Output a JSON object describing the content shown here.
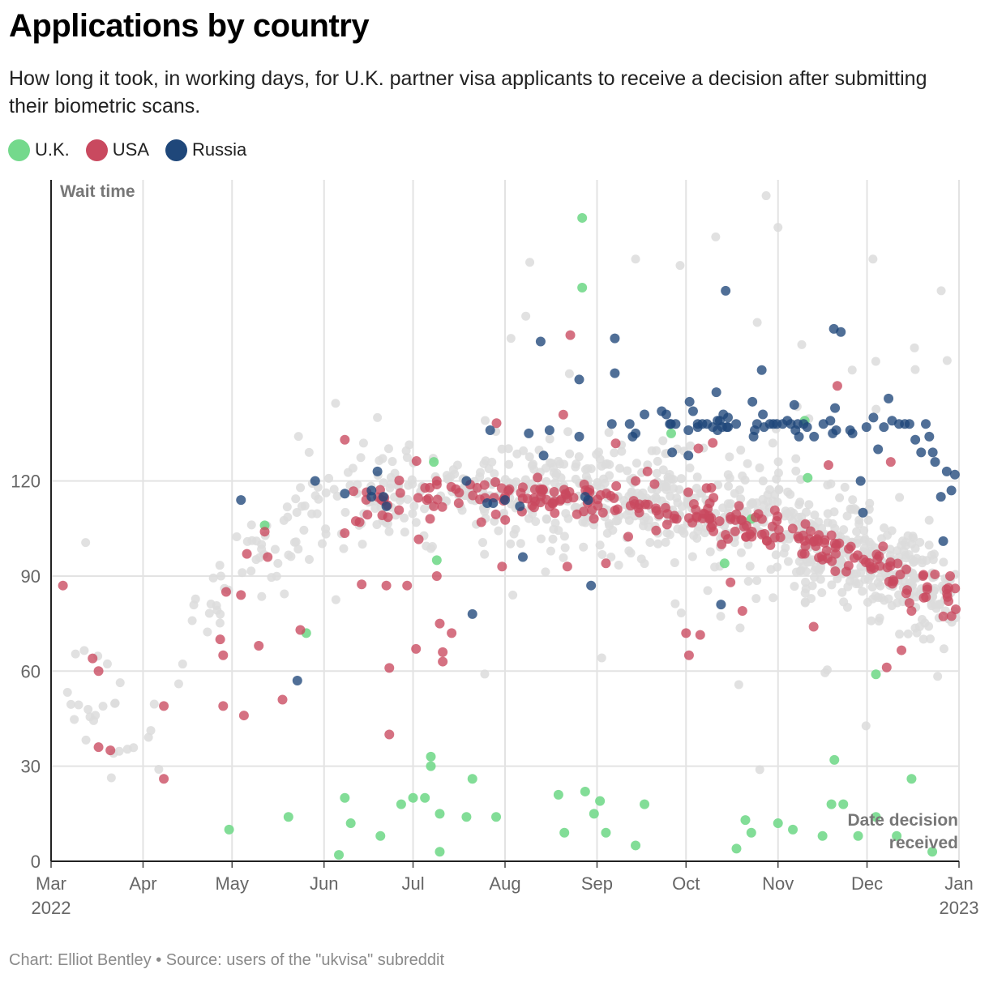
{
  "chart_data": {
    "type": "scatter",
    "title": "Applications by country",
    "subtitle": "How long it took, in working days, for U.K. partner visa applicants to receive a decision after submitting their biometric scans.",
    "ylabel": "Wait time",
    "xlabel": "Date decision received",
    "xlabel_lines": [
      "Date decision",
      "received"
    ],
    "ylim": [
      0,
      215
    ],
    "xlim": [
      "2022-03-01",
      "2023-01-01"
    ],
    "y_ticks": [
      0,
      30,
      60,
      90,
      120
    ],
    "x_ticks": [
      {
        "month": "Mar",
        "year": "2022",
        "date": "2022-03-01"
      },
      {
        "month": "Apr",
        "year": "",
        "date": "2022-04-01"
      },
      {
        "month": "May",
        "year": "",
        "date": "2022-05-01"
      },
      {
        "month": "Jun",
        "year": "",
        "date": "2022-06-01"
      },
      {
        "month": "Jul",
        "year": "",
        "date": "2022-07-01"
      },
      {
        "month": "Aug",
        "year": "",
        "date": "2022-08-01"
      },
      {
        "month": "Sep",
        "year": "",
        "date": "2022-09-01"
      },
      {
        "month": "Oct",
        "year": "",
        "date": "2022-10-01"
      },
      {
        "month": "Nov",
        "year": "",
        "date": "2022-11-01"
      },
      {
        "month": "Dec",
        "year": "",
        "date": "2022-12-01"
      },
      {
        "month": "Jan",
        "year": "2023",
        "date": "2023-01-01"
      }
    ],
    "legend": [
      {
        "name": "U.K.",
        "color": "#74d98c"
      },
      {
        "name": "USA",
        "color": "#c9495f"
      },
      {
        "name": "Russia",
        "color": "#1f477a"
      }
    ],
    "other_color": "#dcdcdc",
    "other_points_note": "Other countries shown in light grey, generated as a dense cloud following the trend line below",
    "other_trend": [
      [
        0,
        60
      ],
      [
        30,
        35
      ],
      [
        60,
        90
      ],
      [
        75,
        98
      ],
      [
        90,
        110
      ],
      [
        120,
        116
      ],
      [
        150,
        117
      ],
      [
        180,
        116
      ],
      [
        210,
        112
      ],
      [
        240,
        106
      ],
      [
        270,
        98
      ],
      [
        290,
        88
      ],
      [
        305,
        83
      ]
    ],
    "series": [
      {
        "name": "U.K.",
        "color": "#74d98c",
        "points": [
          [
            200,
            18
          ],
          [
            227,
            94
          ],
          [
            231,
            4
          ],
          [
            234,
            13
          ],
          [
            236,
            108
          ],
          [
            245,
            12
          ],
          [
            254,
            139
          ],
          [
            255,
            121
          ],
          [
            260,
            8
          ],
          [
            263,
            18
          ],
          [
            267,
            18
          ],
          [
            272,
            8
          ],
          [
            278,
            14
          ],
          [
            285,
            8
          ],
          [
            290,
            26
          ],
          [
            297,
            3
          ],
          [
            60,
            10
          ],
          [
            72,
            106
          ],
          [
            80,
            14
          ],
          [
            86,
            72
          ],
          [
            97,
            2
          ],
          [
            99,
            20
          ],
          [
            101,
            12
          ],
          [
            111,
            8
          ],
          [
            118,
            18
          ],
          [
            122,
            20
          ],
          [
            126,
            20
          ],
          [
            128,
            33
          ],
          [
            128,
            30
          ],
          [
            129,
            126
          ],
          [
            130,
            95
          ],
          [
            131,
            15
          ],
          [
            131,
            3
          ],
          [
            140,
            14
          ],
          [
            142,
            26
          ],
          [
            150,
            14
          ],
          [
            171,
            21
          ],
          [
            173,
            9
          ],
          [
            179,
            203
          ],
          [
            179,
            181
          ],
          [
            180,
            22
          ],
          [
            183,
            15
          ],
          [
            185,
            19
          ],
          [
            187,
            9
          ],
          [
            197,
            5
          ],
          [
            209,
            135
          ],
          [
            236,
            9
          ],
          [
            250,
            10
          ],
          [
            264,
            32
          ],
          [
            278,
            59
          ]
        ]
      },
      {
        "name": "USA",
        "color": "#c9495f"
      },
      {
        "name": "Russia",
        "color": "#1f477a"
      }
    ]
  },
  "footer": "Chart: Elliot Bentley • Source: users of the \"ukvisa\" subreddit"
}
